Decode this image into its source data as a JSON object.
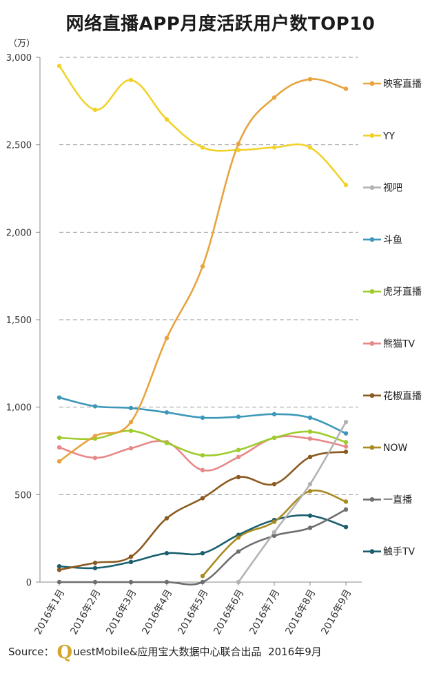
{
  "title": "网络直播APP月度活跃用户数TOP10",
  "unit": "（万）",
  "source": {
    "prefix": "Source：",
    "logo_letter": "Q",
    "text": "uestMobile&应用宝大数据中心联合出品",
    "date": "2016年9月"
  },
  "chart_data": {
    "type": "line",
    "categories": [
      "2016年1月",
      "2016年2月",
      "2016年3月",
      "2016年4月",
      "2016年5月",
      "2016年6月",
      "2016年7月",
      "2016年8月",
      "2016年9月"
    ],
    "ylim": [
      0,
      3000
    ],
    "yticks": [
      0,
      500,
      1000,
      1500,
      2000,
      2500,
      3000
    ],
    "ytick_labels": [
      "0",
      "500",
      "1,000",
      "1,500",
      "2,000",
      "2,500",
      "3,000"
    ],
    "grid": true,
    "legend_position": "right",
    "series": [
      {
        "name": "映客直播",
        "color": "#e8a33d",
        "values": [
          690,
          835,
          915,
          1395,
          1805,
          2505,
          2770,
          2875,
          2820
        ]
      },
      {
        "name": "YY",
        "color": "#f2d22a",
        "values": [
          2950,
          2700,
          2870,
          2645,
          2485,
          2470,
          2485,
          2485,
          2270
        ]
      },
      {
        "name": "视吧",
        "color": "#b3b3b3",
        "values": [
          null,
          null,
          null,
          null,
          null,
          0,
          285,
          560,
          915
        ]
      },
      {
        "name": "斗鱼",
        "color": "#3d97b8",
        "values": [
          1055,
          1005,
          995,
          970,
          940,
          945,
          960,
          940,
          850
        ]
      },
      {
        "name": "虎牙直播",
        "color": "#9dcc2a",
        "values": [
          825,
          820,
          865,
          795,
          725,
          755,
          825,
          860,
          800
        ]
      },
      {
        "name": "熊猫TV",
        "color": "#e88888",
        "values": [
          770,
          710,
          765,
          800,
          640,
          715,
          825,
          820,
          775
        ]
      },
      {
        "name": "花椒直播",
        "color": "#8b5a20",
        "values": [
          70,
          110,
          145,
          365,
          480,
          600,
          560,
          715,
          745
        ]
      },
      {
        "name": "NOW",
        "color": "#a88a1e",
        "values": [
          null,
          null,
          null,
          null,
          35,
          255,
          345,
          520,
          460
        ]
      },
      {
        "name": "一直播",
        "color": "#6e6e6e",
        "values": [
          0,
          0,
          0,
          0,
          0,
          175,
          265,
          310,
          415
        ]
      },
      {
        "name": "触手TV",
        "color": "#1a5f6e",
        "values": [
          90,
          80,
          115,
          165,
          165,
          270,
          355,
          380,
          315
        ]
      }
    ]
  }
}
